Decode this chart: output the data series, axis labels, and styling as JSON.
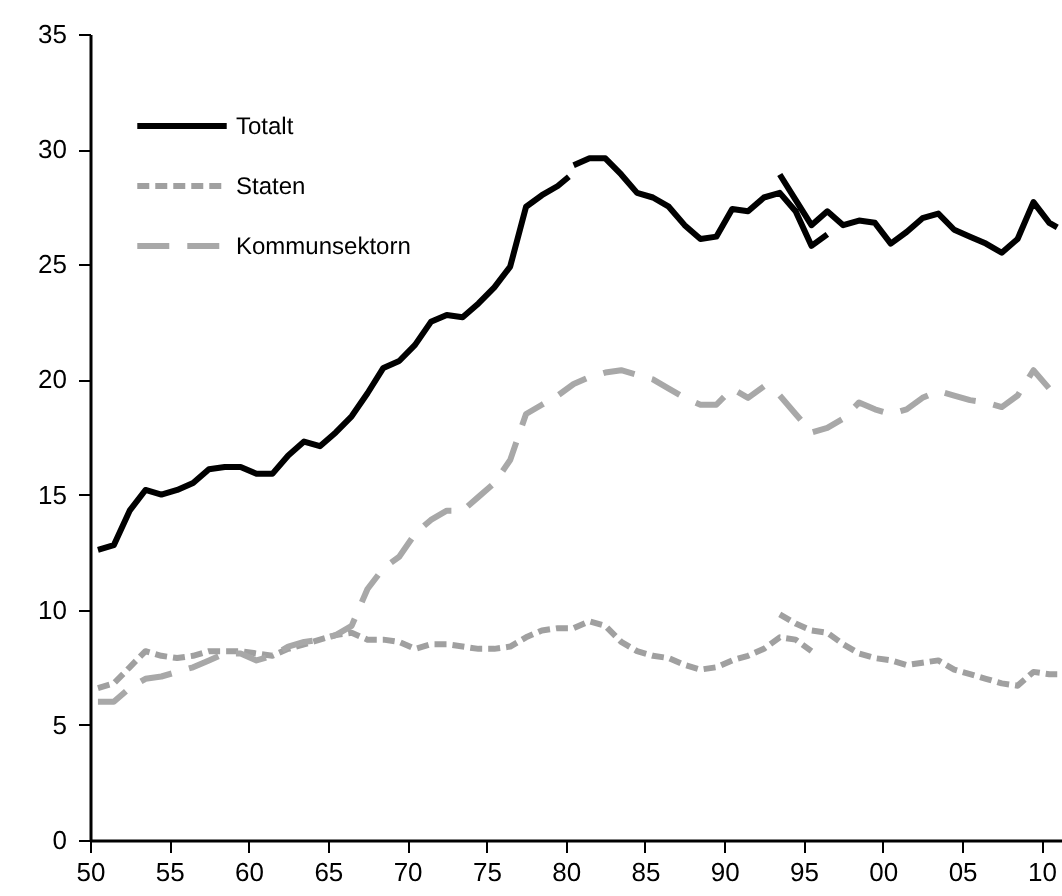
{
  "chart_data": {
    "type": "line",
    "xlim": [
      1950,
      2011.3
    ],
    "ylim": [
      0,
      35
    ],
    "xticks": [
      {
        "value": 1950,
        "label": "50"
      },
      {
        "value": 1955,
        "label": "55"
      },
      {
        "value": 1960,
        "label": "60"
      },
      {
        "value": 1965,
        "label": "65"
      },
      {
        "value": 1970,
        "label": "70"
      },
      {
        "value": 1975,
        "label": "75"
      },
      {
        "value": 1980,
        "label": "80"
      },
      {
        "value": 1985,
        "label": "85"
      },
      {
        "value": 1990,
        "label": "90"
      },
      {
        "value": 1995,
        "label": "95"
      },
      {
        "value": 2000,
        "label": "00"
      },
      {
        "value": 2005,
        "label": "05"
      },
      {
        "value": 2010,
        "label": "10"
      }
    ],
    "yticks": [
      0,
      5,
      10,
      15,
      20,
      25,
      30,
      35
    ],
    "legend": "top left",
    "grid": false,
    "series": [
      {
        "name": "Totalt",
        "color": "#000000",
        "line_style": "solid",
        "x": [
          1950.5,
          1951.5,
          1952.5,
          1953.5,
          1954.5,
          1955.5,
          1956.5,
          1957.5,
          1958.5,
          1959.5,
          1960.5,
          1961.5,
          1962.5,
          1963.5,
          1964.5,
          1965.5,
          1966.5,
          1967.5,
          1968.5,
          1969.5,
          1970.5,
          1971.5,
          1972.5,
          1973.5,
          1974.5,
          1975.5,
          1976.5,
          1977.5,
          1978.5,
          1979.5,
          1980.2,
          null,
          1980.5,
          1981.5,
          1982.5,
          1983.5,
          1984.5,
          1985.5,
          1986.5,
          1987.5,
          1988.5,
          1989.5,
          1990.5,
          1991.5,
          1992.5,
          1993.5,
          1994.5,
          1995.5,
          1996.5,
          null,
          1993.5,
          1994.5,
          1995.5,
          1996.5,
          1997.5,
          1998.5,
          1999.5,
          2000.5,
          2001.5,
          2002.5,
          2003.5,
          2004.5,
          2005.5,
          2006.5,
          2007.5,
          2008.5,
          2009.5,
          2010.5,
          2011
        ],
        "values": [
          12.6,
          12.8,
          14.3,
          15.2,
          15.0,
          15.2,
          15.5,
          16.1,
          16.2,
          16.2,
          15.9,
          15.9,
          16.7,
          17.3,
          17.1,
          17.7,
          18.4,
          19.4,
          20.5,
          20.8,
          21.5,
          22.5,
          22.8,
          22.7,
          23.3,
          24.0,
          24.9,
          27.5,
          28.0,
          28.4,
          28.8,
          null,
          29.3,
          29.6,
          29.6,
          28.9,
          28.1,
          27.9,
          27.5,
          26.7,
          26.1,
          26.2,
          27.4,
          27.3,
          27.9,
          28.1,
          27.3,
          25.8,
          26.3,
          null,
          28.9,
          27.8,
          26.7,
          27.3,
          26.7,
          26.9,
          26.8,
          25.9,
          26.4,
          27.0,
          27.2,
          26.5,
          26.2,
          25.9,
          25.5,
          26.1,
          27.7,
          26.8,
          26.6
        ]
      },
      {
        "name": "Staten",
        "color": "#a0a0a0",
        "line_style": "dotted",
        "x": [
          1950.5,
          1951.5,
          1952.5,
          1953.5,
          1954.5,
          1955.5,
          1956.5,
          1957.5,
          1958.5,
          1959.5,
          1960.5,
          1961.5,
          1962.5,
          1963.5,
          1964.5,
          1965.5,
          1966.5,
          1967.5,
          1968.5,
          1969.5,
          1970.5,
          1971.5,
          1972.5,
          1973.5,
          1974.5,
          1975.5,
          1976.5,
          1977.5,
          1978.5,
          1979.5,
          1980.5,
          1981.5,
          1982.5,
          1983.5,
          1984.5,
          1985.5,
          1986.5,
          1987.5,
          1988.5,
          1989.5,
          1990.5,
          1991.5,
          1992.5,
          1993.5,
          1994.5,
          1995.5,
          null,
          1993.5,
          1994.5,
          1995.5,
          1996.5,
          1997.5,
          1998.5,
          1999.5,
          2000.5,
          2001.5,
          2002.5,
          2003.5,
          2004.5,
          2005.5,
          2006.5,
          2007.5,
          2008.5,
          2009.5,
          2010.5,
          2011
        ],
        "values": [
          6.6,
          6.8,
          7.5,
          8.2,
          8.0,
          7.9,
          8.0,
          8.2,
          8.2,
          8.2,
          8.1,
          8.0,
          8.3,
          8.5,
          8.7,
          8.9,
          9.0,
          8.7,
          8.7,
          8.6,
          8.3,
          8.5,
          8.5,
          8.4,
          8.3,
          8.3,
          8.4,
          8.8,
          9.1,
          9.2,
          9.2,
          9.5,
          9.3,
          8.6,
          8.2,
          8.0,
          7.9,
          7.6,
          7.4,
          7.5,
          7.8,
          8.0,
          8.3,
          8.8,
          8.7,
          8.2,
          null,
          9.8,
          9.4,
          9.1,
          9.0,
          8.5,
          8.1,
          7.9,
          7.8,
          7.6,
          7.7,
          7.8,
          7.4,
          7.2,
          7.0,
          6.8,
          6.7,
          7.3,
          7.2,
          7.2
        ]
      },
      {
        "name": "Kommunsektorn",
        "color": "#a8a8a8",
        "line_style": "dashed",
        "x": [
          1950.5,
          1951.5,
          1952.5,
          1953.5,
          1954.5,
          1955.5,
          1956.5,
          1957.5,
          1958.5,
          1959.5,
          1960.5,
          1961.5,
          1962.5,
          1963.5,
          1964.5,
          1965.5,
          1966.5,
          1967.5,
          1968.5,
          1969.5,
          1970.5,
          1971.5,
          1972.5,
          1973.5,
          1974.5,
          1975.5,
          1976.5,
          1977.5,
          1978.5,
          1979.5,
          1980.5,
          1981.5,
          1982.5,
          1983.5,
          1984.5,
          1985.5,
          1986.5,
          1987.5,
          1988.5,
          1989.5,
          1990.5,
          1991.5,
          1992.5,
          null,
          1993.5,
          1994.5,
          1995.5,
          1996.5,
          1997.5,
          1998.5,
          1999.5,
          2000.5,
          2001.5,
          2002.5,
          2003.5,
          2004.5,
          2005.5,
          2006.5,
          2007.5,
          2008.5,
          2009.5,
          2010.5,
          2011
        ],
        "values": [
          6.0,
          6.0,
          6.6,
          7.0,
          7.1,
          7.3,
          7.5,
          7.8,
          8.1,
          8.1,
          7.8,
          8.0,
          8.4,
          8.6,
          8.7,
          8.9,
          9.3,
          10.9,
          11.8,
          12.3,
          13.3,
          13.9,
          14.3,
          14.3,
          14.9,
          15.5,
          16.5,
          18.5,
          18.9,
          19.3,
          19.8,
          20.1,
          20.3,
          20.4,
          20.2,
          20.0,
          19.6,
          19.2,
          18.9,
          18.9,
          19.6,
          19.2,
          19.7,
          null,
          19.3,
          18.5,
          17.7,
          17.9,
          18.3,
          19.0,
          18.7,
          18.5,
          18.7,
          19.2,
          19.5,
          19.3,
          19.1,
          19.0,
          18.8,
          19.3,
          20.4,
          19.6,
          19.5
        ]
      }
    ]
  }
}
